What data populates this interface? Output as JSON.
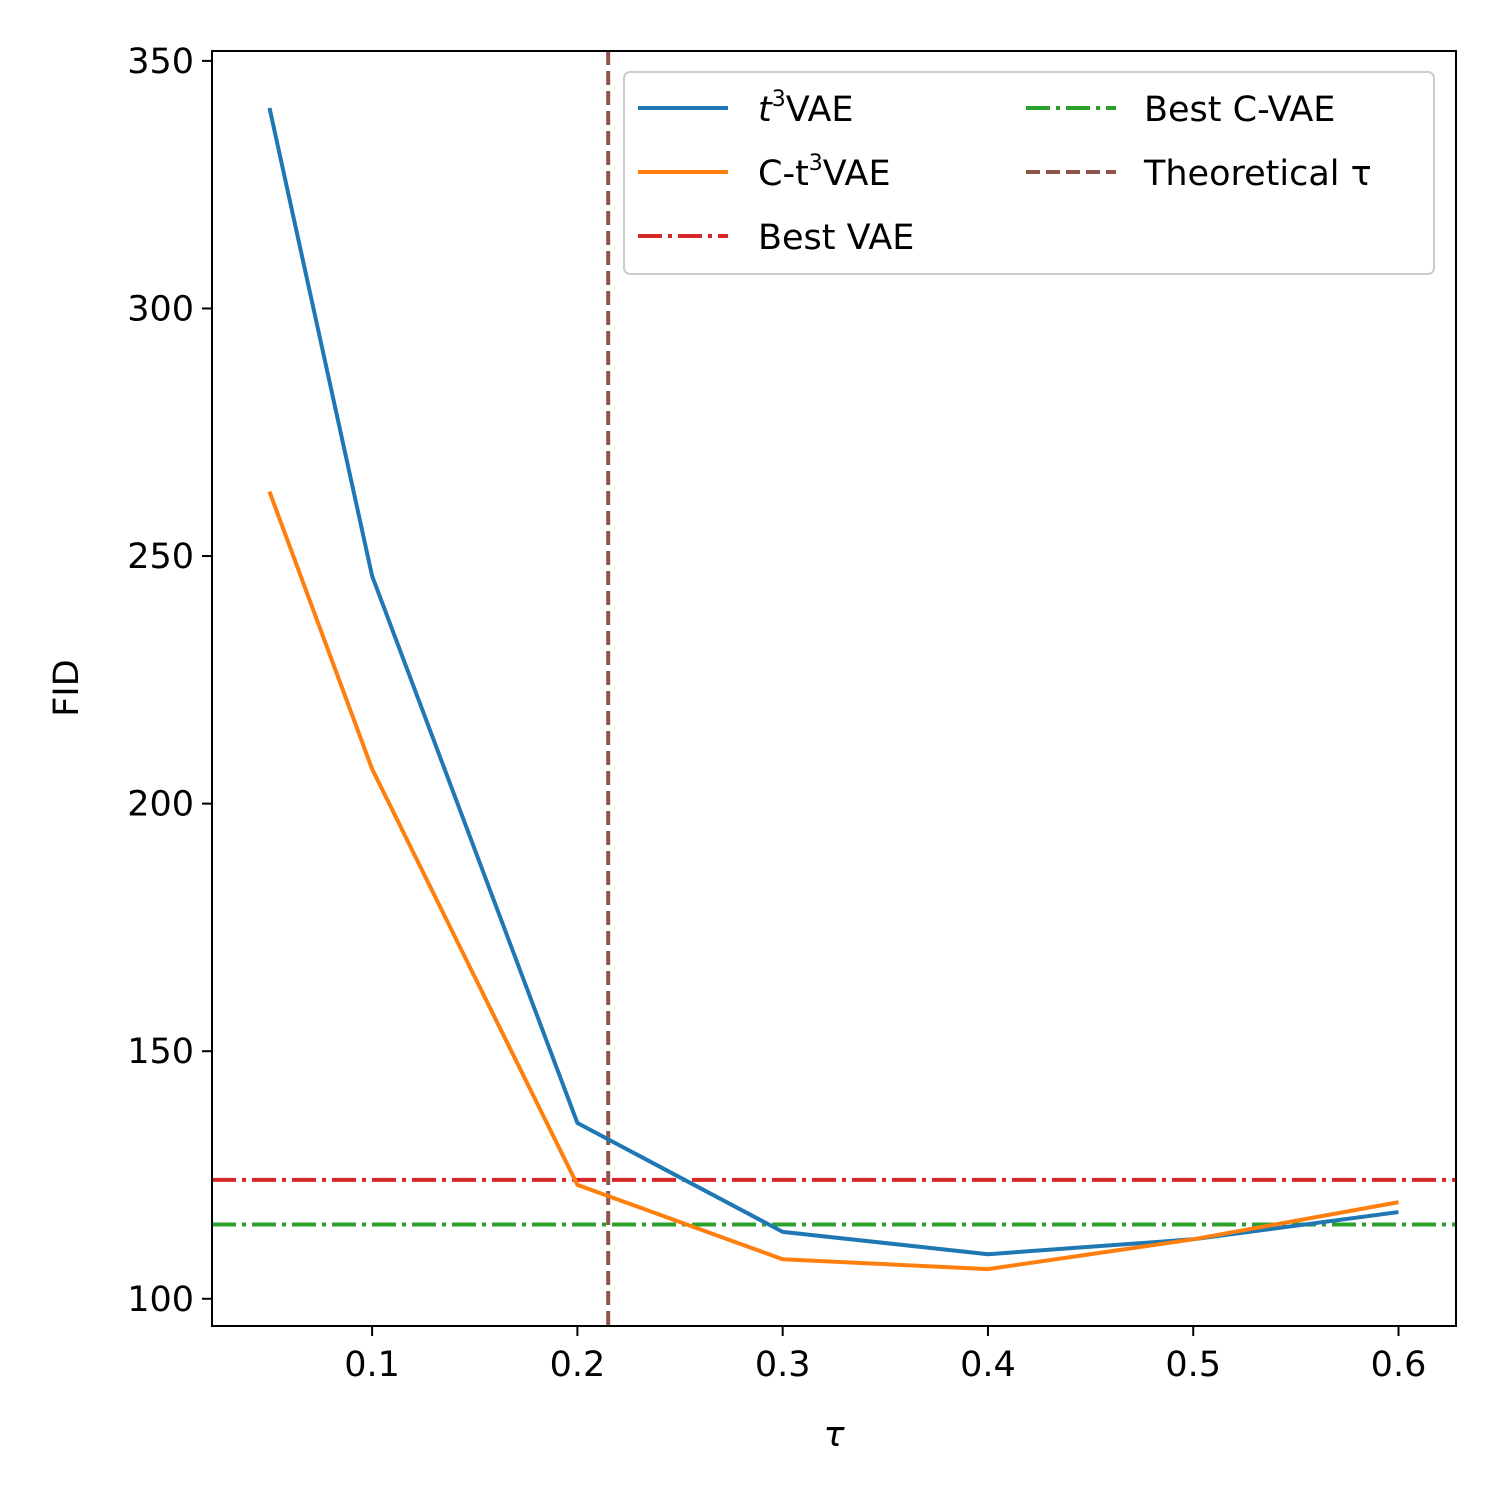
{
  "chart_data": {
    "type": "line",
    "title": "",
    "xlabel": "τ",
    "ylabel": "FID",
    "xlim": [
      0.022,
      0.628
    ],
    "ylim": [
      94.5,
      352
    ],
    "xticks": [
      0.1,
      0.2,
      0.3,
      0.4,
      0.5,
      0.6
    ],
    "xtick_labels": [
      "0.1",
      "0.2",
      "0.3",
      "0.4",
      "0.5",
      "0.6"
    ],
    "yticks": [
      100,
      150,
      200,
      250,
      300,
      350
    ],
    "ytick_labels": [
      "100",
      "150",
      "200",
      "250",
      "300",
      "350"
    ],
    "grid": false,
    "legend_position": "top-right",
    "series": [
      {
        "name": "t³VAE",
        "legend_prefix": "t",
        "legend_sup": "3",
        "legend_suffix": "VAE",
        "color": "#1f77b4",
        "style": "solid",
        "x": [
          0.05,
          0.1,
          0.2,
          0.3,
          0.4,
          0.5,
          0.6
        ],
        "y": [
          340.5,
          246,
          135.5,
          113.5,
          109,
          112,
          117.5
        ]
      },
      {
        "name": "C-t³VAE",
        "legend_prefix": "C-t",
        "legend_sup": "3",
        "legend_suffix": "VAE",
        "color": "#ff7f0e",
        "style": "solid",
        "x": [
          0.05,
          0.1,
          0.2,
          0.3,
          0.4,
          0.5,
          0.6
        ],
        "y": [
          263,
          207,
          123,
          108,
          106,
          112,
          119.5
        ]
      }
    ],
    "hlines": [
      {
        "name": "Best VAE",
        "label": "Best VAE",
        "color": "#d62728",
        "style": "dashdot",
        "y": 124
      },
      {
        "name": "Best C-VAE",
        "label": "Best C-VAE",
        "color": "#2ca02c",
        "style": "dashdot",
        "y": 115
      }
    ],
    "vlines": [
      {
        "name": "Theoretical τ",
        "label": "Theoretical τ",
        "color": "#8c564b",
        "style": "dashed",
        "x": 0.215
      }
    ]
  }
}
